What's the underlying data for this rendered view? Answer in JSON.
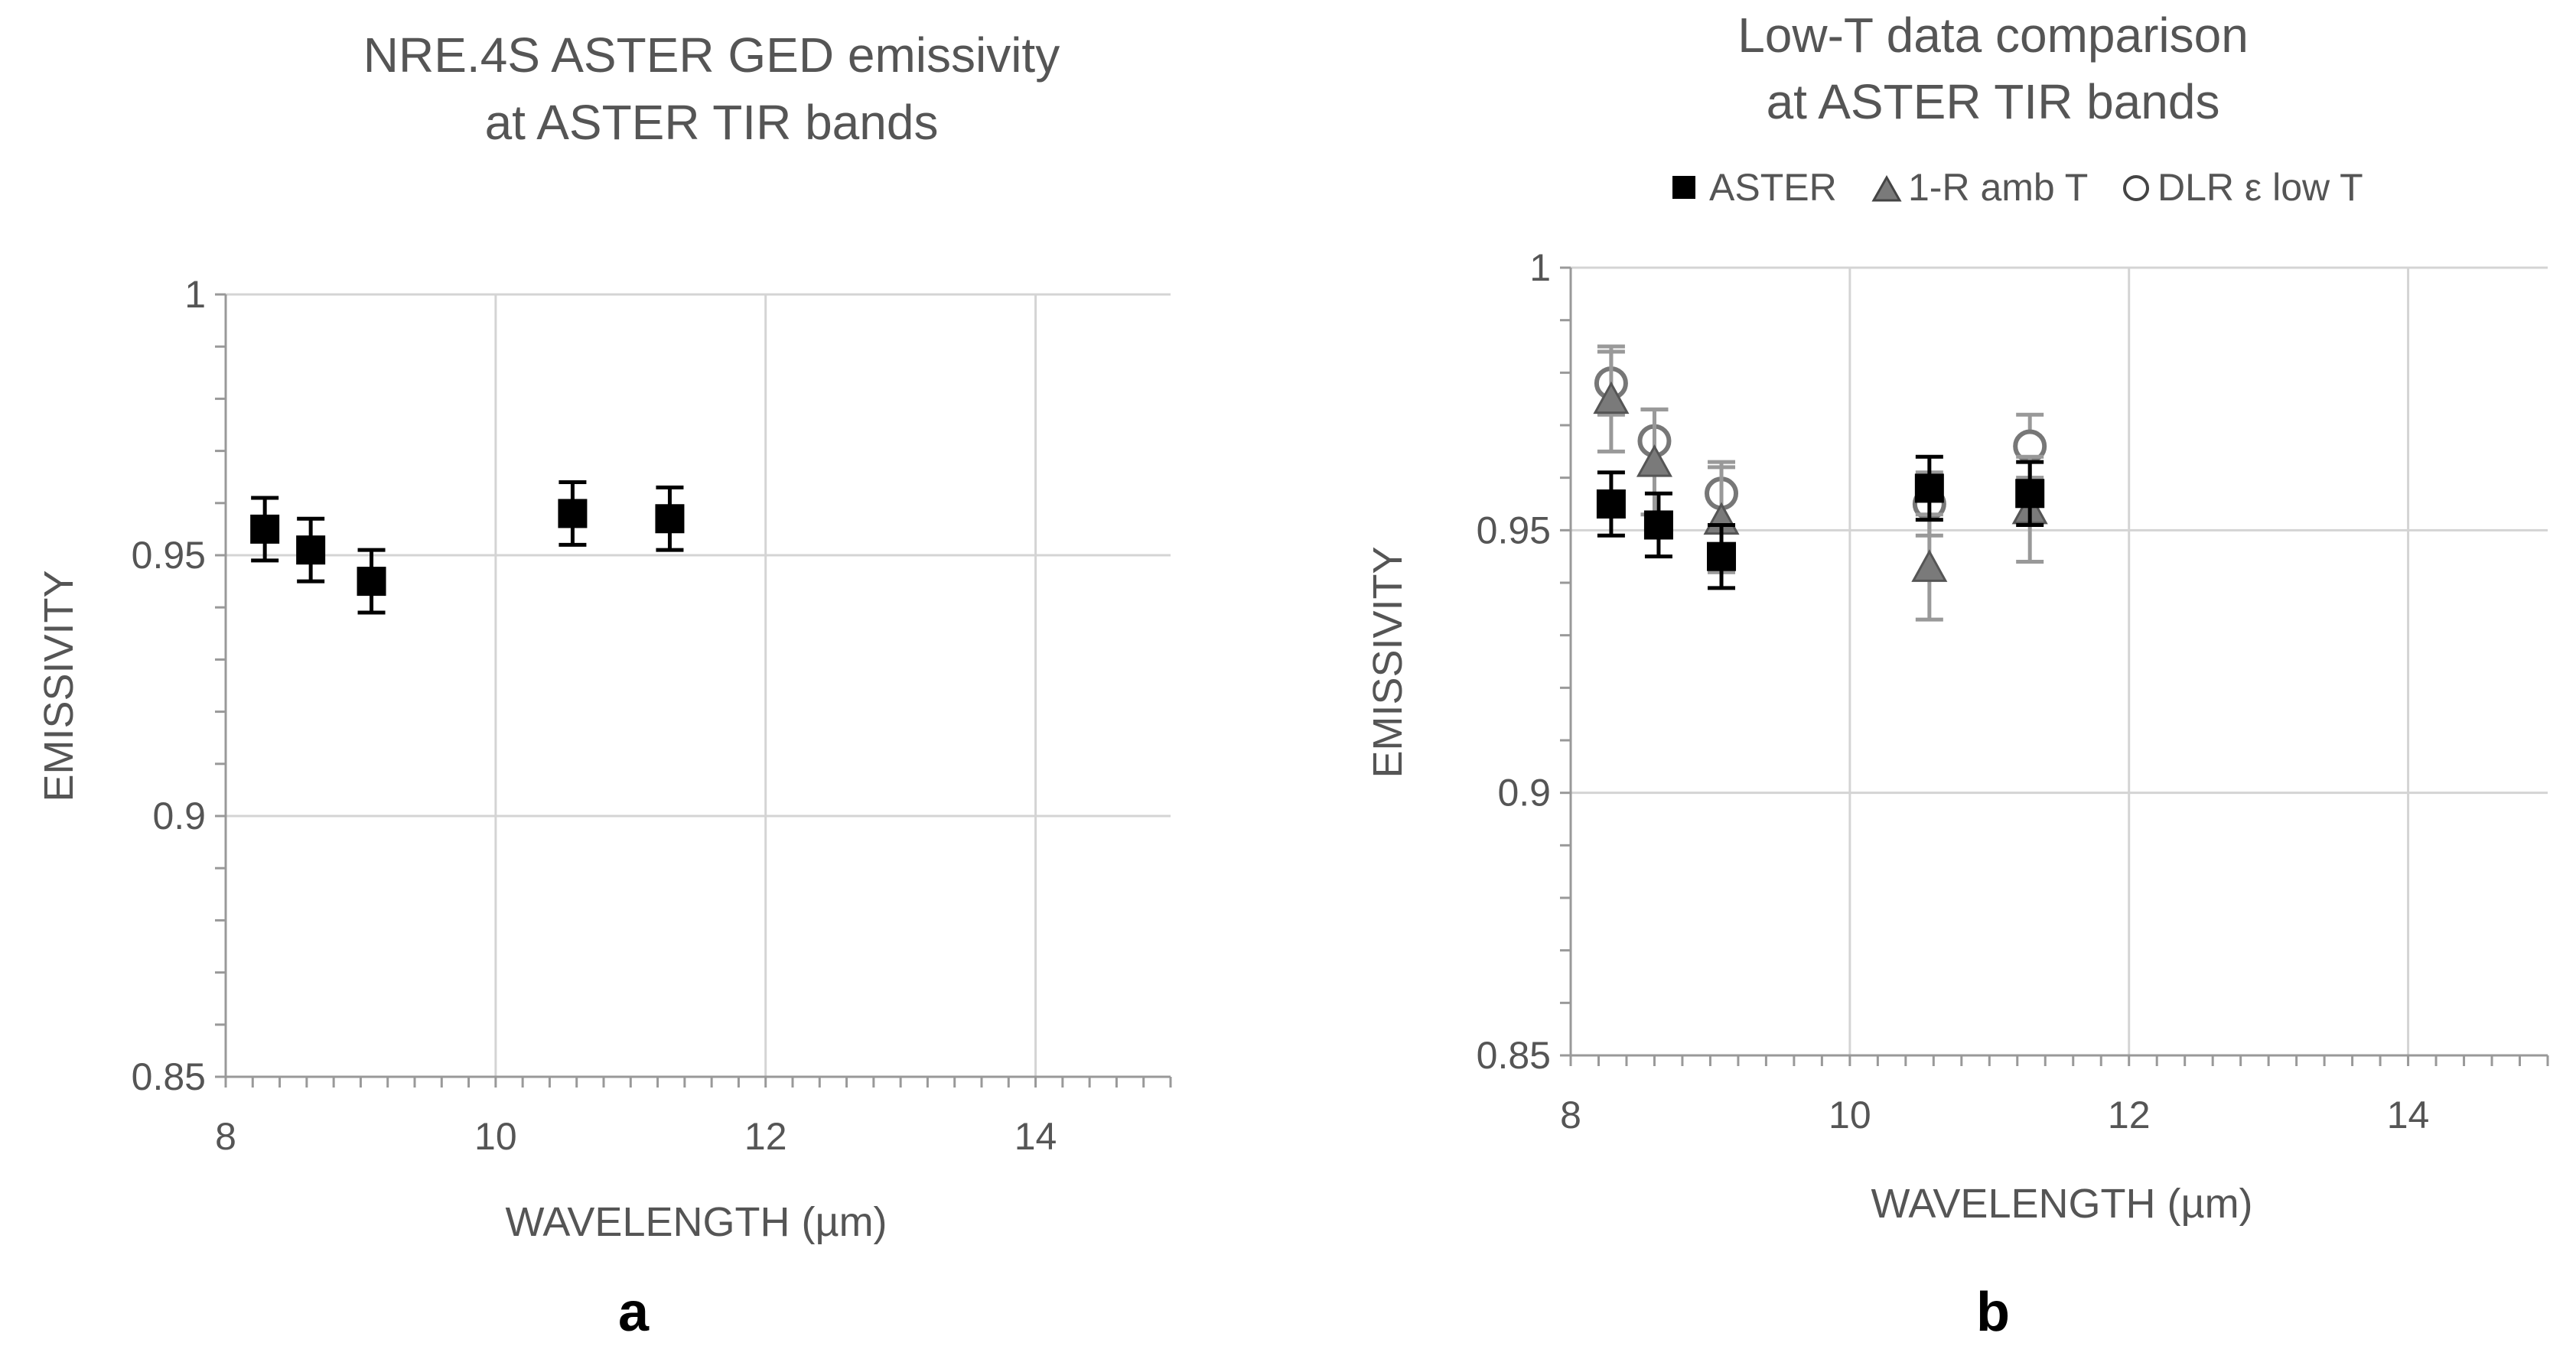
{
  "chart_data": [
    {
      "type": "scatter",
      "panel_label": "a",
      "title_lines": [
        "NRE.4S ASTER GED emissivity",
        "at ASTER TIR bands"
      ],
      "xlabel": "WAVELENGTH (µm)",
      "ylabel": "EMISSIVITY",
      "xlim": [
        8,
        15
      ],
      "ylim": [
        0.85,
        1
      ],
      "xticks": [
        8,
        10,
        12,
        14
      ],
      "yticks": [
        0.85,
        0.9,
        0.95,
        1
      ],
      "xtick_labels": [
        "8",
        "10",
        "12",
        "14"
      ],
      "ytick_labels": [
        "0.85",
        "0.9",
        "0.95",
        "1"
      ],
      "grid": true,
      "series": [
        {
          "name": "ASTER",
          "marker": "square",
          "color": "#000000",
          "x": [
            8.29,
            8.63,
            9.08,
            10.57,
            11.29
          ],
          "y": [
            0.955,
            0.951,
            0.945,
            0.958,
            0.957
          ],
          "err": [
            0.006,
            0.006,
            0.006,
            0.006,
            0.006
          ]
        }
      ]
    },
    {
      "type": "scatter",
      "panel_label": "b",
      "title_lines": [
        "Low-T data comparison",
        "at ASTER TIR bands"
      ],
      "xlabel": "WAVELENGTH (µm)",
      "ylabel": "EMISSIVITY",
      "xlim": [
        8,
        15
      ],
      "ylim": [
        0.85,
        1
      ],
      "xticks": [
        8,
        10,
        12,
        14
      ],
      "yticks": [
        0.85,
        0.9,
        0.95,
        1
      ],
      "xtick_labels": [
        "8",
        "10",
        "12",
        "14"
      ],
      "ytick_labels": [
        "0.85",
        "0.9",
        "0.95",
        "1"
      ],
      "grid": true,
      "legend_position": "top",
      "series": [
        {
          "name": "ASTER",
          "marker": "square",
          "color": "#000000",
          "x": [
            8.29,
            8.63,
            9.08,
            10.57,
            11.29
          ],
          "y": [
            0.955,
            0.951,
            0.945,
            0.958,
            0.957
          ],
          "err": [
            0.006,
            0.006,
            0.006,
            0.006,
            0.006
          ]
        },
        {
          "name": "1-R amb T",
          "marker": "triangle",
          "color": "#7a7a7a",
          "x": [
            8.29,
            8.6,
            9.08,
            10.57,
            11.29
          ],
          "y": [
            0.975,
            0.963,
            0.952,
            0.943,
            0.954
          ],
          "err": [
            0.01,
            0.01,
            0.01,
            0.01,
            0.01
          ]
        },
        {
          "name": "DLR ε low T",
          "marker": "circle",
          "color": "#777777",
          "x": [
            8.29,
            8.6,
            9.08,
            10.57,
            11.29
          ],
          "y": [
            0.978,
            0.967,
            0.957,
            0.955,
            0.966
          ],
          "err": [
            0.006,
            0.006,
            0.006,
            0.006,
            0.006
          ]
        }
      ]
    }
  ]
}
